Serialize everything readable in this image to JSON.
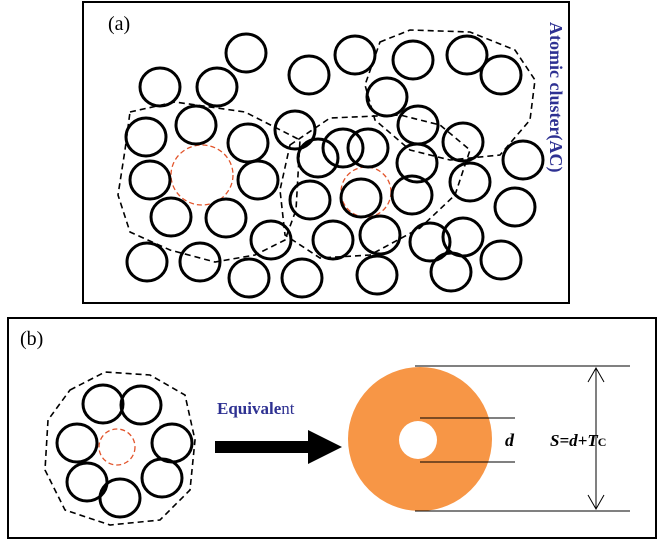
{
  "panel_a": {
    "label": "(a)",
    "annotation": "Atomic cluster(AC)"
  },
  "panel_b": {
    "label": "(b)",
    "arrow_label": {
      "bold_part": "Equivale",
      "rest": "nt"
    },
    "inner_dimension": "d",
    "outer_dimension": {
      "main": "S=d+T",
      "subscript": "C"
    }
  }
}
